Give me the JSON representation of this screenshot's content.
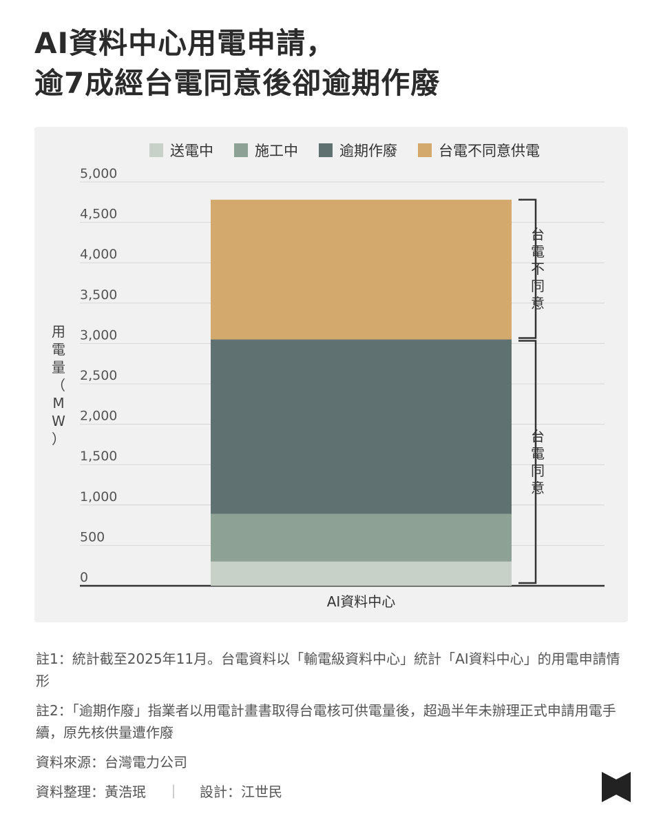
{
  "title": {
    "line1": "AI資料中心用電申請，",
    "line2": "逾7成經台電同意後卻逾期作廢"
  },
  "chart_data": {
    "type": "bar",
    "stacked": true,
    "categories": [
      "AI資料中心"
    ],
    "series": [
      {
        "name": "送電中",
        "values": [
          300
        ],
        "color": "#c8d1c8"
      },
      {
        "name": "施工中",
        "values": [
          590
        ],
        "color": "#8ea195"
      },
      {
        "name": "逾期作廢",
        "values": [
          2160
        ],
        "color": "#5f7170"
      },
      {
        "name": "台電不同意供電",
        "values": [
          1730
        ],
        "color": "#d4a96d"
      }
    ],
    "ylabel_chars": [
      "用",
      "電",
      "量",
      "（",
      "M",
      "W",
      "）"
    ],
    "ylim": [
      0,
      5000
    ],
    "yticks": [
      {
        "value": 0,
        "label": "0"
      },
      {
        "value": 500,
        "label": "500"
      },
      {
        "value": 1000,
        "label": "1,000"
      },
      {
        "value": 1500,
        "label": "1,500"
      },
      {
        "value": 2000,
        "label": "2,000"
      },
      {
        "value": 2500,
        "label": "2,500"
      },
      {
        "value": 3000,
        "label": "3,000"
      },
      {
        "value": 3500,
        "label": "3,500"
      },
      {
        "value": 4000,
        "label": "4,000"
      },
      {
        "value": 4500,
        "label": "4,500"
      },
      {
        "value": 5000,
        "label": "5,000"
      }
    ],
    "grid": true,
    "legend_position": "top",
    "annotations": [
      {
        "chars": [
          "台",
          "電",
          "不",
          "同",
          "意"
        ],
        "from": 3050,
        "to": 4780
      },
      {
        "chars": [
          "台",
          "電",
          "同",
          "意"
        ],
        "from": 0,
        "to": 3050
      }
    ]
  },
  "notes": {
    "note1": "註1：統計截至2025年11月。台電資料以「輸電級資料中心」統計「AI資料中心」的用電申請情形",
    "note2": "註2：「逾期作廢」指業者以用電計畫書取得台電核可供電量後，超過半年未辦理正式申請用電手續，原先核供量遭作廢",
    "source": "資料來源：台灣電力公司",
    "compiled": "資料整理：黃浩珉",
    "separator": "｜",
    "design": "設計：江世民"
  },
  "logo": {
    "icon": "bookmark-logo-icon",
    "color": "#222222"
  }
}
